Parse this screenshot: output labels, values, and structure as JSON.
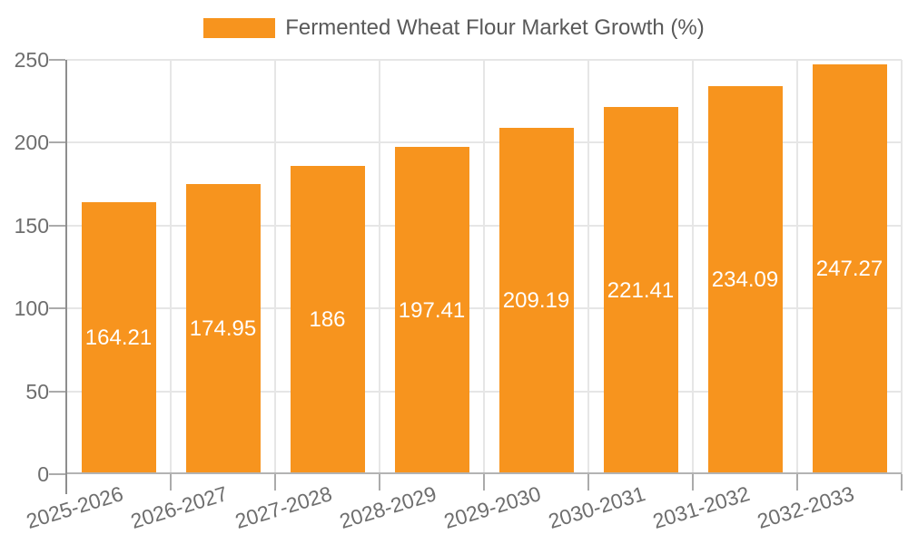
{
  "chart_data": {
    "type": "bar",
    "title": "Fermented Wheat Flour Market Growth (%)",
    "legend": {
      "label": "Fermented Wheat Flour Market Growth (%)",
      "position": "top-center",
      "swatch": "filled-rectangle"
    },
    "categories": [
      "2025-2026",
      "2026-2027",
      "2027-2028",
      "2028-2029",
      "2029-2030",
      "2030-2031",
      "2031-2032",
      "2032-2033"
    ],
    "values": [
      164.21,
      174.95,
      186,
      197.41,
      209.19,
      221.41,
      234.09,
      247.27
    ],
    "value_labels": [
      "164.21",
      "174.95",
      "186",
      "197.41",
      "209.19",
      "221.41",
      "234.09",
      "247.27"
    ],
    "value_label_position": "inside-center",
    "xlabel": "",
    "ylabel": "",
    "ylim": [
      0,
      250
    ],
    "yticks": [
      0,
      50,
      100,
      150,
      200,
      250
    ],
    "ytick_labels": [
      "0",
      "50",
      "100",
      "150",
      "200",
      "250"
    ],
    "xtick_rotation_deg": -17,
    "grid": true,
    "grid_lines": "horizontal-and-vertical-band-boundaries",
    "colors": {
      "bar": "#F7941E",
      "grid": "#e6e6e6",
      "axis_y": "#8e8e8e",
      "axis_x": "#b3b3b3",
      "tick": "#ababab",
      "tick_label": "#6e6e6e",
      "value_label": "#ffffff",
      "legend_text": "#595959",
      "background": "#ffffff"
    }
  }
}
